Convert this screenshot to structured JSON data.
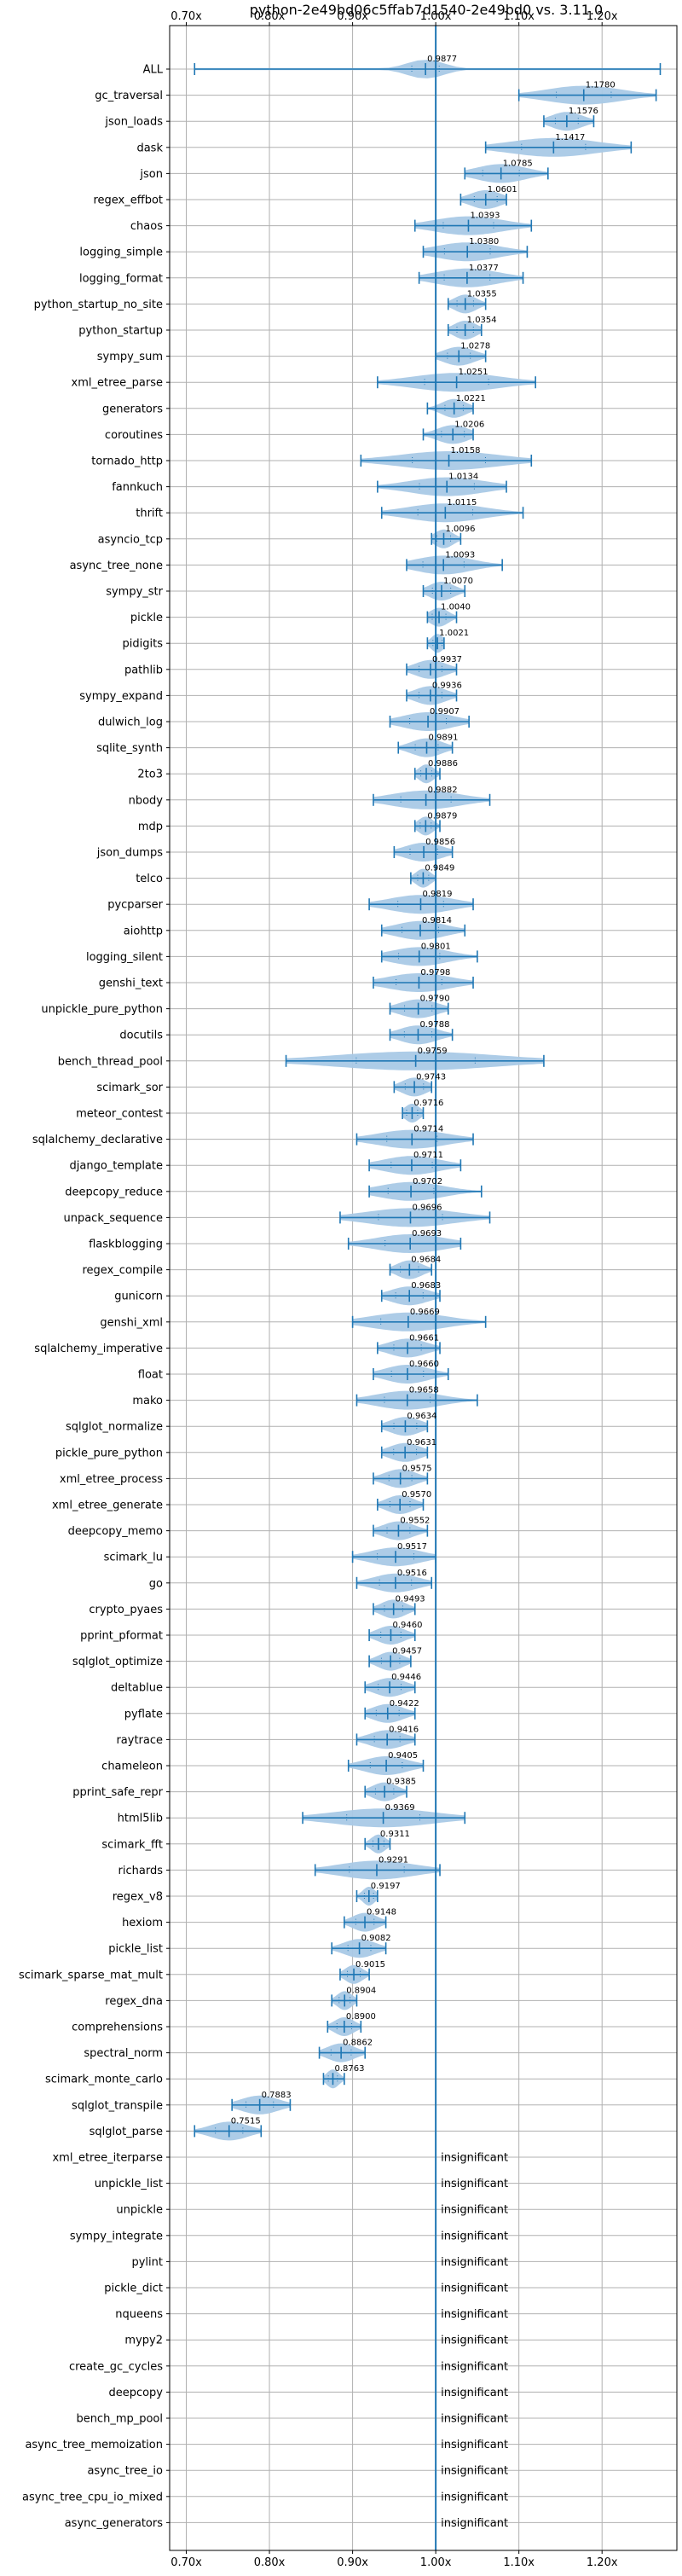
{
  "chart_data": {
    "type": "violin",
    "title": "python-2e49bd06c5ffab7d1540-2e49bd0 vs. 3.11.0",
    "xlim": [
      0.68,
      1.29
    ],
    "xticks": [
      0.7,
      0.8,
      0.9,
      1.0,
      1.1,
      1.2
    ],
    "xtick_labels": [
      "0.70x",
      "0.80x",
      "0.90x",
      "1.00x",
      "1.10x",
      "1.20x"
    ],
    "reference_line": 1.0,
    "grid": true,
    "colors": {
      "violin": "#a9c9e6",
      "whisker": "#1f77b4",
      "refline": "#1f77b4",
      "grid": "#b0b0b0"
    },
    "insignificant_label": "insignificant",
    "benchmarks": [
      {
        "name": "ALL",
        "value": 0.9877,
        "label": "0.9877",
        "min": 0.71,
        "max": 1.27,
        "spread": 0.03
      },
      {
        "name": "gc_traversal",
        "value": 1.178,
        "label": "1.1780",
        "min": 1.1,
        "max": 1.265,
        "spread": 0.06
      },
      {
        "name": "json_loads",
        "value": 1.1576,
        "label": "1.1576",
        "min": 1.13,
        "max": 1.19,
        "spread": 0.025
      },
      {
        "name": "dask",
        "value": 1.1417,
        "label": "1.1417",
        "min": 1.06,
        "max": 1.235,
        "spread": 0.07
      },
      {
        "name": "json",
        "value": 1.0785,
        "label": "1.0785",
        "min": 1.035,
        "max": 1.135,
        "spread": 0.04
      },
      {
        "name": "regex_effbot",
        "value": 1.0601,
        "label": "1.0601",
        "min": 1.03,
        "max": 1.085,
        "spread": 0.025
      },
      {
        "name": "chaos",
        "value": 1.0393,
        "label": "1.0393",
        "min": 0.975,
        "max": 1.115,
        "spread": 0.055
      },
      {
        "name": "logging_simple",
        "value": 1.038,
        "label": "1.0380",
        "min": 0.985,
        "max": 1.11,
        "spread": 0.05
      },
      {
        "name": "logging_format",
        "value": 1.0377,
        "label": "1.0377",
        "min": 0.98,
        "max": 1.105,
        "spread": 0.05
      },
      {
        "name": "python_startup_no_site",
        "value": 1.0355,
        "label": "1.0355",
        "min": 1.015,
        "max": 1.06,
        "spread": 0.018
      },
      {
        "name": "python_startup",
        "value": 1.0354,
        "label": "1.0354",
        "min": 1.015,
        "max": 1.055,
        "spread": 0.018
      },
      {
        "name": "sympy_sum",
        "value": 1.0278,
        "label": "1.0278",
        "min": 1.0,
        "max": 1.06,
        "spread": 0.025
      },
      {
        "name": "xml_etree_parse",
        "value": 1.0251,
        "label": "1.0251",
        "min": 0.93,
        "max": 1.12,
        "spread": 0.07
      },
      {
        "name": "generators",
        "value": 1.0221,
        "label": "1.0221",
        "min": 0.99,
        "max": 1.045,
        "spread": 0.02
      },
      {
        "name": "coroutines",
        "value": 1.0206,
        "label": "1.0206",
        "min": 0.985,
        "max": 1.045,
        "spread": 0.025
      },
      {
        "name": "tornado_http",
        "value": 1.0158,
        "label": "1.0158",
        "min": 0.91,
        "max": 1.115,
        "spread": 0.08
      },
      {
        "name": "fannkuch",
        "value": 1.0134,
        "label": "1.0134",
        "min": 0.93,
        "max": 1.085,
        "spread": 0.06
      },
      {
        "name": "thrift",
        "value": 1.0115,
        "label": "1.0115",
        "min": 0.935,
        "max": 1.105,
        "spread": 0.06
      },
      {
        "name": "asyncio_tcp",
        "value": 1.0096,
        "label": "1.0096",
        "min": 0.995,
        "max": 1.03,
        "spread": 0.015
      },
      {
        "name": "async_tree_none",
        "value": 1.0093,
        "label": "1.0093",
        "min": 0.965,
        "max": 1.08,
        "spread": 0.045
      },
      {
        "name": "sympy_str",
        "value": 1.007,
        "label": "1.0070",
        "min": 0.985,
        "max": 1.035,
        "spread": 0.02
      },
      {
        "name": "pickle",
        "value": 1.004,
        "label": "1.0040",
        "min": 0.99,
        "max": 1.025,
        "spread": 0.015
      },
      {
        "name": "pidigits",
        "value": 1.0021,
        "label": "1.0021",
        "min": 0.99,
        "max": 1.01,
        "spread": 0.01
      },
      {
        "name": "pathlib",
        "value": 0.9937,
        "label": "0.9937",
        "min": 0.965,
        "max": 1.025,
        "spread": 0.025
      },
      {
        "name": "sympy_expand",
        "value": 0.9936,
        "label": "0.9936",
        "min": 0.965,
        "max": 1.025,
        "spread": 0.025
      },
      {
        "name": "dulwich_log",
        "value": 0.9907,
        "label": "0.9907",
        "min": 0.945,
        "max": 1.04,
        "spread": 0.04
      },
      {
        "name": "sqlite_synth",
        "value": 0.9891,
        "label": "0.9891",
        "min": 0.955,
        "max": 1.02,
        "spread": 0.025
      },
      {
        "name": "2to3",
        "value": 0.9886,
        "label": "0.9886",
        "min": 0.975,
        "max": 1.005,
        "spread": 0.012
      },
      {
        "name": "nbody",
        "value": 0.9882,
        "label": "0.9882",
        "min": 0.925,
        "max": 1.065,
        "spread": 0.055
      },
      {
        "name": "mdp",
        "value": 0.9879,
        "label": "0.9879",
        "min": 0.975,
        "max": 1.005,
        "spread": 0.012
      },
      {
        "name": "json_dumps",
        "value": 0.9856,
        "label": "0.9856",
        "min": 0.95,
        "max": 1.02,
        "spread": 0.03
      },
      {
        "name": "telco",
        "value": 0.9849,
        "label": "0.9849",
        "min": 0.97,
        "max": 1.0,
        "spread": 0.012
      },
      {
        "name": "pycparser",
        "value": 0.9819,
        "label": "0.9819",
        "min": 0.92,
        "max": 1.045,
        "spread": 0.05
      },
      {
        "name": "aiohttp",
        "value": 0.9814,
        "label": "0.9814",
        "min": 0.935,
        "max": 1.035,
        "spread": 0.04
      },
      {
        "name": "logging_silent",
        "value": 0.9801,
        "label": "0.9801",
        "min": 0.935,
        "max": 1.05,
        "spread": 0.045
      },
      {
        "name": "genshi_text",
        "value": 0.9798,
        "label": "0.9798",
        "min": 0.925,
        "max": 1.045,
        "spread": 0.05
      },
      {
        "name": "unpickle_pure_python",
        "value": 0.979,
        "label": "0.9790",
        "min": 0.945,
        "max": 1.015,
        "spread": 0.03
      },
      {
        "name": "docutils",
        "value": 0.9788,
        "label": "0.9788",
        "min": 0.945,
        "max": 1.02,
        "spread": 0.03
      },
      {
        "name": "bench_thread_pool",
        "value": 0.9759,
        "label": "0.9759",
        "min": 0.82,
        "max": 1.13,
        "spread": 0.13
      },
      {
        "name": "scimark_sor",
        "value": 0.9743,
        "label": "0.9743",
        "min": 0.95,
        "max": 0.995,
        "spread": 0.02
      },
      {
        "name": "meteor_contest",
        "value": 0.9716,
        "label": "0.9716",
        "min": 0.96,
        "max": 0.985,
        "spread": 0.012
      },
      {
        "name": "sqlalchemy_declarative",
        "value": 0.9714,
        "label": "0.9714",
        "min": 0.905,
        "max": 1.045,
        "spread": 0.055
      },
      {
        "name": "django_template",
        "value": 0.9711,
        "label": "0.9711",
        "min": 0.92,
        "max": 1.03,
        "spread": 0.045
      },
      {
        "name": "deepcopy_reduce",
        "value": 0.9702,
        "label": "0.9702",
        "min": 0.92,
        "max": 1.055,
        "spread": 0.05
      },
      {
        "name": "unpack_sequence",
        "value": 0.9696,
        "label": "0.9696",
        "min": 0.885,
        "max": 1.065,
        "spread": 0.07
      },
      {
        "name": "flaskblogging",
        "value": 0.9693,
        "label": "0.9693",
        "min": 0.895,
        "max": 1.03,
        "spread": 0.055
      },
      {
        "name": "regex_compile",
        "value": 0.9684,
        "label": "0.9684",
        "min": 0.945,
        "max": 0.995,
        "spread": 0.02
      },
      {
        "name": "gunicorn",
        "value": 0.9683,
        "label": "0.9683",
        "min": 0.935,
        "max": 1.005,
        "spread": 0.03
      },
      {
        "name": "genshi_xml",
        "value": 0.9669,
        "label": "0.9669",
        "min": 0.9,
        "max": 1.06,
        "spread": 0.06
      },
      {
        "name": "sqlalchemy_imperative",
        "value": 0.9661,
        "label": "0.9661",
        "min": 0.93,
        "max": 1.005,
        "spread": 0.03
      },
      {
        "name": "float",
        "value": 0.966,
        "label": "0.9660",
        "min": 0.925,
        "max": 1.015,
        "spread": 0.035
      },
      {
        "name": "mako",
        "value": 0.9658,
        "label": "0.9658",
        "min": 0.905,
        "max": 1.05,
        "spread": 0.05
      },
      {
        "name": "sqlglot_normalize",
        "value": 0.9634,
        "label": "0.9634",
        "min": 0.935,
        "max": 0.99,
        "spread": 0.025
      },
      {
        "name": "pickle_pure_python",
        "value": 0.9631,
        "label": "0.9631",
        "min": 0.935,
        "max": 0.99,
        "spread": 0.025
      },
      {
        "name": "xml_etree_process",
        "value": 0.9575,
        "label": "0.9575",
        "min": 0.925,
        "max": 0.99,
        "spread": 0.025
      },
      {
        "name": "xml_etree_generate",
        "value": 0.957,
        "label": "0.9570",
        "min": 0.93,
        "max": 0.985,
        "spread": 0.022
      },
      {
        "name": "deepcopy_memo",
        "value": 0.9552,
        "label": "0.9552",
        "min": 0.925,
        "max": 0.99,
        "spread": 0.025
      },
      {
        "name": "scimark_lu",
        "value": 0.9517,
        "label": "0.9517",
        "min": 0.9,
        "max": 1.0,
        "spread": 0.04
      },
      {
        "name": "go",
        "value": 0.9516,
        "label": "0.9516",
        "min": 0.905,
        "max": 0.995,
        "spread": 0.035
      },
      {
        "name": "crypto_pyaes",
        "value": 0.9493,
        "label": "0.9493",
        "min": 0.925,
        "max": 0.975,
        "spread": 0.02
      },
      {
        "name": "pprint_pformat",
        "value": 0.946,
        "label": "0.9460",
        "min": 0.92,
        "max": 0.975,
        "spread": 0.022
      },
      {
        "name": "sqlglot_optimize",
        "value": 0.9457,
        "label": "0.9457",
        "min": 0.92,
        "max": 0.97,
        "spread": 0.02
      },
      {
        "name": "deltablue",
        "value": 0.9446,
        "label": "0.9446",
        "min": 0.915,
        "max": 0.975,
        "spread": 0.025
      },
      {
        "name": "pyflate",
        "value": 0.9422,
        "label": "0.9422",
        "min": 0.915,
        "max": 0.975,
        "spread": 0.025
      },
      {
        "name": "raytrace",
        "value": 0.9416,
        "label": "0.9416",
        "min": 0.905,
        "max": 0.975,
        "spread": 0.028
      },
      {
        "name": "chameleon",
        "value": 0.9405,
        "label": "0.9405",
        "min": 0.895,
        "max": 0.985,
        "spread": 0.035
      },
      {
        "name": "pprint_safe_repr",
        "value": 0.9385,
        "label": "0.9385",
        "min": 0.915,
        "max": 0.965,
        "spread": 0.02
      },
      {
        "name": "html5lib",
        "value": 0.9369,
        "label": "0.9369",
        "min": 0.84,
        "max": 1.035,
        "spread": 0.08
      },
      {
        "name": "scimark_fft",
        "value": 0.9311,
        "label": "0.9311",
        "min": 0.915,
        "max": 0.945,
        "spread": 0.012
      },
      {
        "name": "richards",
        "value": 0.9291,
        "label": "0.9291",
        "min": 0.855,
        "max": 1.005,
        "spread": 0.06
      },
      {
        "name": "regex_v8",
        "value": 0.9197,
        "label": "0.9197",
        "min": 0.905,
        "max": 0.93,
        "spread": 0.01
      },
      {
        "name": "hexiom",
        "value": 0.9148,
        "label": "0.9148",
        "min": 0.89,
        "max": 0.94,
        "spread": 0.02
      },
      {
        "name": "pickle_list",
        "value": 0.9082,
        "label": "0.9082",
        "min": 0.875,
        "max": 0.94,
        "spread": 0.025
      },
      {
        "name": "scimark_sparse_mat_mult",
        "value": 0.9015,
        "label": "0.9015",
        "min": 0.885,
        "max": 0.92,
        "spread": 0.014
      },
      {
        "name": "regex_dna",
        "value": 0.8904,
        "label": "0.8904",
        "min": 0.875,
        "max": 0.905,
        "spread": 0.012
      },
      {
        "name": "comprehensions",
        "value": 0.89,
        "label": "0.8900",
        "min": 0.87,
        "max": 0.91,
        "spread": 0.016
      },
      {
        "name": "spectral_norm",
        "value": 0.8862,
        "label": "0.8862",
        "min": 0.86,
        "max": 0.915,
        "spread": 0.022
      },
      {
        "name": "scimark_monte_carlo",
        "value": 0.8763,
        "label": "0.8763",
        "min": 0.865,
        "max": 0.89,
        "spread": 0.01
      },
      {
        "name": "sqlglot_transpile",
        "value": 0.7883,
        "label": "0.7883",
        "min": 0.755,
        "max": 0.825,
        "spread": 0.03
      },
      {
        "name": "sqlglot_parse",
        "value": 0.7515,
        "label": "0.7515",
        "min": 0.71,
        "max": 0.79,
        "spread": 0.03
      },
      {
        "name": "xml_etree_iterparse",
        "insignificant": true
      },
      {
        "name": "unpickle_list",
        "insignificant": true
      },
      {
        "name": "unpickle",
        "insignificant": true
      },
      {
        "name": "sympy_integrate",
        "insignificant": true
      },
      {
        "name": "pylint",
        "insignificant": true
      },
      {
        "name": "pickle_dict",
        "insignificant": true
      },
      {
        "name": "nqueens",
        "insignificant": true
      },
      {
        "name": "mypy2",
        "insignificant": true
      },
      {
        "name": "create_gc_cycles",
        "insignificant": true
      },
      {
        "name": "deepcopy",
        "insignificant": true
      },
      {
        "name": "bench_mp_pool",
        "insignificant": true
      },
      {
        "name": "async_tree_memoization",
        "insignificant": true
      },
      {
        "name": "async_tree_io",
        "insignificant": true
      },
      {
        "name": "async_tree_cpu_io_mixed",
        "insignificant": true
      },
      {
        "name": "async_generators",
        "insignificant": true
      }
    ]
  }
}
